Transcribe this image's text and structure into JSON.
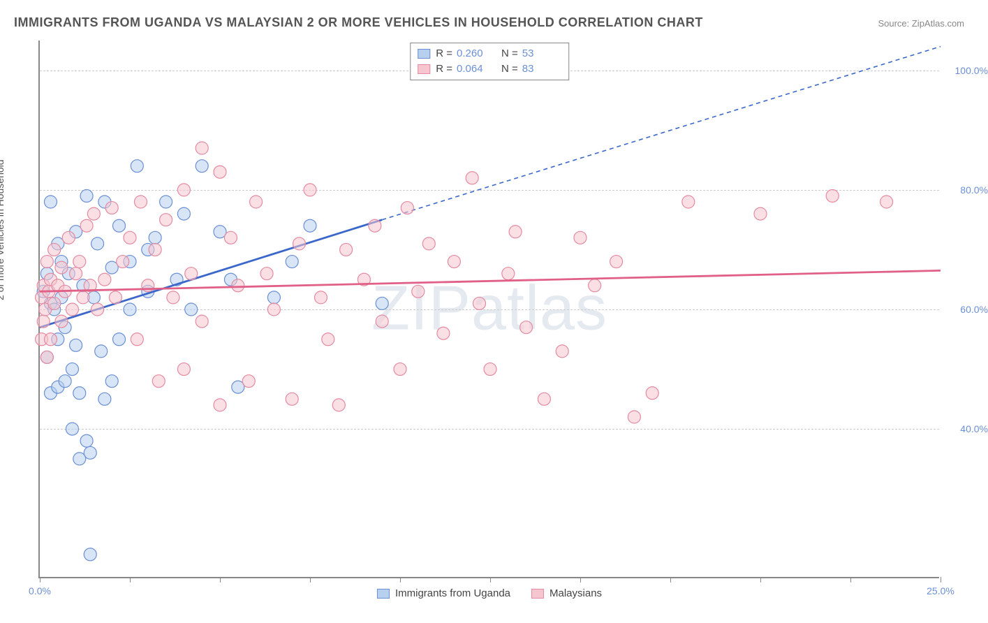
{
  "title": "IMMIGRANTS FROM UGANDA VS MALAYSIAN 2 OR MORE VEHICLES IN HOUSEHOLD CORRELATION CHART",
  "source": "Source: ZipAtlas.com",
  "watermark": "ZIPatlas",
  "chart": {
    "type": "scatter",
    "ylabel": "2 or more Vehicles in Household",
    "xlim": [
      0,
      25
    ],
    "ylim": [
      15,
      105
    ],
    "ytick_positions": [
      40,
      60,
      80,
      100
    ],
    "ytick_labels": [
      "40.0%",
      "60.0%",
      "80.0%",
      "100.0%"
    ],
    "xtick_positions": [
      0,
      2.5,
      5,
      7.5,
      10,
      12.5,
      15,
      17.5,
      20,
      22.5,
      25
    ],
    "xtick_labels_shown": {
      "0": "0.0%",
      "25": "25.0%"
    },
    "background_color": "#ffffff",
    "grid_color": "#cccccc",
    "axis_color": "#888888",
    "tick_label_color": "#6b8fd4",
    "marker_radius": 9,
    "marker_opacity": 0.55,
    "series": [
      {
        "name": "Immigrants from Uganda",
        "fill_color": "#b7d0ee",
        "stroke_color": "#6b8fd4",
        "line_color": "#3a67c9",
        "R": "0.260",
        "N": "53",
        "regression": {
          "x1": 0,
          "y1": 57,
          "x2": 9.5,
          "y2": 75,
          "solid": true
        },
        "regression_extrapolated": {
          "x1": 9.5,
          "y1": 75,
          "x2": 25,
          "y2": 104
        },
        "points": [
          [
            0.1,
            63
          ],
          [
            0.2,
            66
          ],
          [
            0.2,
            52
          ],
          [
            0.3,
            78
          ],
          [
            0.3,
            46
          ],
          [
            0.3,
            61
          ],
          [
            0.4,
            60
          ],
          [
            0.5,
            71
          ],
          [
            0.5,
            55
          ],
          [
            0.5,
            47
          ],
          [
            0.6,
            68
          ],
          [
            0.6,
            62
          ],
          [
            0.7,
            48
          ],
          [
            0.7,
            57
          ],
          [
            0.8,
            66
          ],
          [
            0.9,
            40
          ],
          [
            0.9,
            50
          ],
          [
            1.0,
            73
          ],
          [
            1.0,
            54
          ],
          [
            1.1,
            35
          ],
          [
            1.1,
            46
          ],
          [
            1.2,
            64
          ],
          [
            1.3,
            79
          ],
          [
            1.3,
            38
          ],
          [
            1.4,
            36
          ],
          [
            1.4,
            19
          ],
          [
            1.5,
            62
          ],
          [
            1.6,
            71
          ],
          [
            1.7,
            53
          ],
          [
            1.8,
            45
          ],
          [
            1.8,
            78
          ],
          [
            2.0,
            48
          ],
          [
            2.0,
            67
          ],
          [
            2.2,
            74
          ],
          [
            2.2,
            55
          ],
          [
            2.5,
            68
          ],
          [
            2.5,
            60
          ],
          [
            2.7,
            84
          ],
          [
            3.0,
            70
          ],
          [
            3.0,
            63
          ],
          [
            3.2,
            72
          ],
          [
            3.5,
            78
          ],
          [
            3.8,
            65
          ],
          [
            4.0,
            76
          ],
          [
            4.2,
            60
          ],
          [
            4.5,
            84
          ],
          [
            5.0,
            73
          ],
          [
            5.3,
            65
          ],
          [
            5.5,
            47
          ],
          [
            6.5,
            62
          ],
          [
            7.0,
            68
          ],
          [
            7.5,
            74
          ],
          [
            9.5,
            61
          ]
        ]
      },
      {
        "name": "Malaysians",
        "fill_color": "#f6c6d0",
        "stroke_color": "#e48aa0",
        "line_color": "#e06088",
        "R": "0.064",
        "N": "83",
        "regression": {
          "x1": 0,
          "y1": 63,
          "x2": 25,
          "y2": 66.5,
          "solid": true
        },
        "points": [
          [
            0.05,
            55
          ],
          [
            0.05,
            62
          ],
          [
            0.1,
            58
          ],
          [
            0.1,
            64
          ],
          [
            0.15,
            60
          ],
          [
            0.2,
            52
          ],
          [
            0.2,
            68
          ],
          [
            0.25,
            63
          ],
          [
            0.3,
            55
          ],
          [
            0.3,
            65
          ],
          [
            0.4,
            61
          ],
          [
            0.4,
            70
          ],
          [
            0.5,
            64
          ],
          [
            0.6,
            58
          ],
          [
            0.6,
            67
          ],
          [
            0.7,
            63
          ],
          [
            0.8,
            72
          ],
          [
            0.9,
            60
          ],
          [
            1.0,
            66
          ],
          [
            1.1,
            68
          ],
          [
            1.2,
            62
          ],
          [
            1.3,
            74
          ],
          [
            1.4,
            64
          ],
          [
            1.5,
            76
          ],
          [
            1.6,
            60
          ],
          [
            1.8,
            65
          ],
          [
            2.0,
            77
          ],
          [
            2.1,
            62
          ],
          [
            2.3,
            68
          ],
          [
            2.5,
            72
          ],
          [
            2.7,
            55
          ],
          [
            2.8,
            78
          ],
          [
            3.0,
            64
          ],
          [
            3.2,
            70
          ],
          [
            3.3,
            48
          ],
          [
            3.5,
            75
          ],
          [
            3.7,
            62
          ],
          [
            4.0,
            80
          ],
          [
            4.0,
            50
          ],
          [
            4.2,
            66
          ],
          [
            4.5,
            87
          ],
          [
            4.5,
            58
          ],
          [
            5.0,
            83
          ],
          [
            5.0,
            44
          ],
          [
            5.3,
            72
          ],
          [
            5.5,
            64
          ],
          [
            5.8,
            48
          ],
          [
            6.0,
            78
          ],
          [
            6.3,
            66
          ],
          [
            6.5,
            60
          ],
          [
            7.0,
            45
          ],
          [
            7.2,
            71
          ],
          [
            7.5,
            80
          ],
          [
            7.8,
            62
          ],
          [
            8.0,
            55
          ],
          [
            8.3,
            44
          ],
          [
            8.5,
            70
          ],
          [
            9.0,
            65
          ],
          [
            9.3,
            74
          ],
          [
            9.5,
            58
          ],
          [
            10.0,
            50
          ],
          [
            10.2,
            77
          ],
          [
            10.5,
            63
          ],
          [
            10.8,
            71
          ],
          [
            11.2,
            56
          ],
          [
            11.5,
            68
          ],
          [
            12.0,
            82
          ],
          [
            12.2,
            61
          ],
          [
            12.5,
            50
          ],
          [
            13.0,
            66
          ],
          [
            13.2,
            73
          ],
          [
            13.5,
            57
          ],
          [
            14.0,
            45
          ],
          [
            14.5,
            53
          ],
          [
            15.0,
            72
          ],
          [
            15.4,
            64
          ],
          [
            16.0,
            68
          ],
          [
            16.5,
            42
          ],
          [
            17.0,
            46
          ],
          [
            18.0,
            78
          ],
          [
            20.0,
            76
          ],
          [
            22.0,
            79
          ],
          [
            23.5,
            78
          ]
        ]
      }
    ],
    "legend_bottom": [
      {
        "swatch_fill": "#b7d0ee",
        "swatch_stroke": "#6b8fd4",
        "label": "Immigrants from Uganda"
      },
      {
        "swatch_fill": "#f6c6d0",
        "swatch_stroke": "#e48aa0",
        "label": "Malaysians"
      }
    ]
  }
}
